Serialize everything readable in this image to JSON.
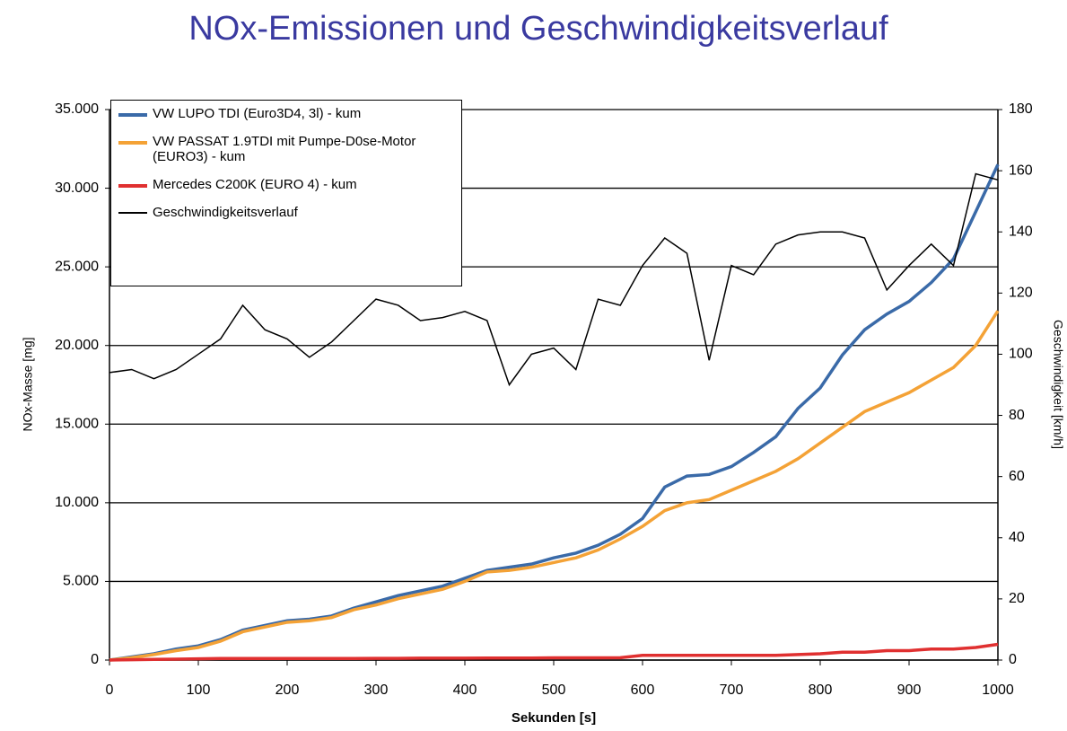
{
  "chart_data": {
    "type": "line",
    "title": "NOx-Emissionen und Geschwindigkeitsverlauf",
    "xlabel": "Sekunden [s]",
    "ylabel": "NOx-Masse [mg]",
    "y2label": "Geschwindigkeit [km/h]",
    "x": [
      0,
      25,
      50,
      75,
      100,
      125,
      150,
      175,
      200,
      225,
      250,
      275,
      300,
      325,
      350,
      375,
      400,
      425,
      450,
      475,
      500,
      525,
      550,
      575,
      600,
      625,
      650,
      675,
      700,
      725,
      750,
      775,
      800,
      825,
      850,
      875,
      900,
      925,
      950,
      975,
      1000
    ],
    "xlim": [
      0,
      1000
    ],
    "xticks": [
      0,
      100,
      200,
      300,
      400,
      500,
      600,
      700,
      800,
      900,
      1000
    ],
    "ylim": [
      0,
      35000
    ],
    "yticks": [
      0,
      {
        "value": 5000,
        "label": "5.000"
      },
      {
        "value": 10000,
        "label": "10.000"
      },
      {
        "value": 15000,
        "label": "15.000"
      },
      {
        "value": 20000,
        "label": "20.000"
      },
      {
        "value": 25000,
        "label": "25.000"
      },
      {
        "value": 30000,
        "label": "30.000"
      },
      {
        "value": 35000,
        "label": "35.000"
      }
    ],
    "y2lim": [
      0,
      180
    ],
    "y2ticks": [
      0,
      20,
      40,
      60,
      80,
      100,
      120,
      140,
      160,
      180
    ],
    "grid": true,
    "legend": "top-left",
    "series": [
      {
        "name": "VW LUPO TDI (Euro3D4, 3l) - kum",
        "color": "#3a6aa8",
        "values": [
          0,
          200,
          400,
          700,
          900,
          1300,
          1900,
          2200,
          2500,
          2600,
          2800,
          3300,
          3700,
          4100,
          4400,
          4700,
          5200,
          5700,
          5900,
          6100,
          6500,
          6800,
          7300,
          8000,
          9000,
          11000,
          11700,
          11800,
          12300,
          13200,
          14200,
          16000,
          17300,
          19400,
          21000,
          22000,
          22800,
          24000,
          25500,
          28500,
          31500
        ]
      },
      {
        "name": "VW PASSAT 1.9TDI mit Pumpe-D0se-Motor (EURO3) - kum",
        "color": "#f4a236",
        "values": [
          0,
          150,
          350,
          600,
          800,
          1200,
          1800,
          2100,
          2400,
          2500,
          2700,
          3200,
          3500,
          3900,
          4200,
          4500,
          5000,
          5600,
          5700,
          5900,
          6200,
          6500,
          7000,
          7700,
          8500,
          9500,
          10000,
          10200,
          10800,
          11400,
          12000,
          12800,
          13800,
          14800,
          15800,
          16400,
          17000,
          17800,
          18600,
          20000,
          22200
        ]
      },
      {
        "name": "Mercedes C200K (EURO 4)  - kum",
        "color": "#e03030",
        "values": [
          0,
          20,
          40,
          60,
          80,
          100,
          100,
          100,
          100,
          100,
          100,
          100,
          110,
          110,
          120,
          120,
          120,
          130,
          130,
          130,
          140,
          140,
          140,
          150,
          300,
          300,
          300,
          300,
          300,
          300,
          300,
          350,
          400,
          500,
          500,
          600,
          600,
          700,
          700,
          800,
          1000
        ]
      },
      {
        "name": "Geschwindigkeitsverlauf",
        "color": "#000000",
        "axis": "y2",
        "values": [
          94,
          95,
          92,
          95,
          100,
          105,
          116,
          108,
          105,
          99,
          104,
          111,
          118,
          116,
          111,
          112,
          114,
          111,
          90,
          100,
          102,
          95,
          118,
          116,
          129,
          138,
          133,
          98,
          129,
          126,
          136,
          139,
          140,
          140,
          138,
          121,
          129,
          136,
          129,
          159,
          157
        ]
      }
    ]
  }
}
